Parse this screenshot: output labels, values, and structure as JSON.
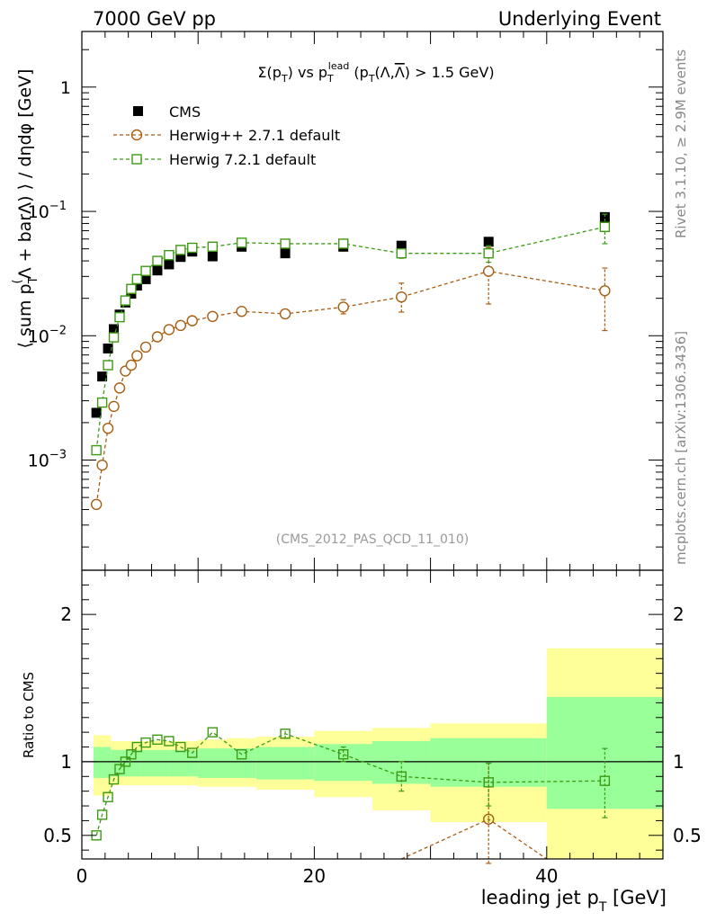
{
  "header": {
    "left": "7000 GeV pp",
    "right": "Underlying Event"
  },
  "side_labels": {
    "rivet": "Rivet 3.1.10, ≥ 2.9M events",
    "mcplots": "mcplots.cern.ch [arXiv:1306.3436]"
  },
  "chart_data": [
    {
      "type": "scatter",
      "panel": "main",
      "title_parts": [
        "Σ(p",
        "T",
        ") vs p",
        "T",
        "lead",
        " (p",
        "T",
        "(Λ,",
        "Λ",
        ") > 1.5 GeV)"
      ],
      "ylabel": "⟨ sum p",
      "ylabel_parts": [
        "⟨ sum p",
        "T",
        "(",
        "Λ + barΛ) ⟩ / dηdφ [GeV]"
      ],
      "xlabel": "",
      "xlim": [
        0,
        50
      ],
      "ylim": [
        0.00013,
        2.8
      ],
      "yscale": "log",
      "y_ticks": [
        {
          "value": 1,
          "label": "1"
        },
        {
          "value": 0.1,
          "label": "10",
          "exp": "−1"
        },
        {
          "value": 0.01,
          "label": "10",
          "exp": "−2"
        },
        {
          "value": 0.001,
          "label": "10",
          "exp": "−3"
        }
      ],
      "watermark": "(CMS_2012_PAS_QCD_11_010)",
      "legend_position": "top-left",
      "series": [
        {
          "name": "CMS",
          "color": "#000000",
          "marker": "filled-square",
          "x": [
            1.25,
            1.75,
            2.25,
            2.75,
            3.25,
            3.75,
            4.25,
            4.75,
            5.5,
            6.5,
            7.5,
            8.5,
            9.5,
            11.25,
            13.75,
            17.5,
            22.5,
            27.5,
            35,
            45
          ],
          "y": [
            0.0024,
            0.0047,
            0.0079,
            0.0113,
            0.0148,
            0.0185,
            0.0218,
            0.0253,
            0.0285,
            0.0335,
            0.0375,
            0.043,
            0.0475,
            0.0435,
            0.052,
            0.046,
            0.052,
            0.053,
            0.057,
            0.09
          ]
        },
        {
          "name": "Herwig++ 2.7.1 default",
          "color": "#a85d12",
          "marker": "open-circle",
          "x": [
            1.25,
            1.75,
            2.25,
            2.75,
            3.25,
            3.75,
            4.25,
            4.75,
            5.5,
            6.5,
            7.5,
            8.5,
            9.5,
            11.25,
            13.75,
            17.5,
            22.5,
            27.5,
            35,
            45
          ],
          "y": [
            0.00044,
            0.00091,
            0.0018,
            0.0027,
            0.0038,
            0.0052,
            0.0058,
            0.0069,
            0.0081,
            0.0098,
            0.0112,
            0.0121,
            0.0132,
            0.0143,
            0.0157,
            0.015,
            0.017,
            0.0205,
            0.033,
            0.023
          ],
          "err_low": [
            0,
            0,
            0,
            0,
            0,
            0,
            0,
            0,
            0,
            0,
            0,
            0,
            0,
            0,
            0,
            0,
            0.002,
            0.005,
            0.015,
            0.012
          ],
          "err_high": [
            0,
            0,
            0,
            0,
            0,
            0,
            0,
            0,
            0,
            0,
            0,
            0,
            0,
            0,
            0,
            0,
            0.0025,
            0.006,
            0.018,
            0.012
          ]
        },
        {
          "name": "Herwig 7.2.1 default",
          "color": "#3d9a14",
          "marker": "open-square",
          "x": [
            1.25,
            1.75,
            2.25,
            2.75,
            3.25,
            3.75,
            4.25,
            4.75,
            5.5,
            6.5,
            7.5,
            8.5,
            9.5,
            11.25,
            13.75,
            17.5,
            22.5,
            27.5,
            35,
            45
          ],
          "y": [
            0.0012,
            0.0029,
            0.0058,
            0.0097,
            0.0141,
            0.0192,
            0.0238,
            0.0285,
            0.0332,
            0.04,
            0.0445,
            0.049,
            0.051,
            0.052,
            0.056,
            0.055,
            0.055,
            0.046,
            0.046,
            0.075
          ],
          "err_low": [
            0,
            0,
            0,
            0,
            0,
            0,
            0,
            0,
            0,
            0,
            0,
            0,
            0,
            0,
            0,
            0,
            0,
            0.004,
            0.007,
            0.02
          ],
          "err_high": [
            0,
            0,
            0,
            0,
            0,
            0,
            0,
            0,
            0,
            0,
            0,
            0,
            0,
            0,
            0,
            0,
            0,
            0.004,
            0.007,
            0.02
          ]
        }
      ]
    },
    {
      "type": "scatter",
      "panel": "ratio",
      "ylabel": "Ratio to CMS",
      "xlabel": "leading jet p",
      "xlabel_parts": [
        "leading jet p",
        "T",
        " [GeV]"
      ],
      "xlim": [
        0,
        50
      ],
      "ylim": [
        0.34,
        2.3
      ],
      "x_ticks": [
        0,
        20,
        40
      ],
      "y_ticks": [
        0.5,
        1,
        2
      ],
      "bands": [
        {
          "x0": 1,
          "x1": 2.5,
          "yellow": [
            0.77,
            1.18
          ],
          "green": [
            0.89,
            1.1
          ]
        },
        {
          "x0": 2.5,
          "x1": 5,
          "yellow": [
            0.84,
            1.14
          ],
          "green": [
            0.9,
            1.08
          ]
        },
        {
          "x0": 5,
          "x1": 7.5,
          "yellow": [
            0.84,
            1.14
          ],
          "green": [
            0.9,
            1.08
          ]
        },
        {
          "x0": 7.5,
          "x1": 10,
          "yellow": [
            0.84,
            1.14
          ],
          "green": [
            0.9,
            1.08
          ]
        },
        {
          "x0": 10,
          "x1": 12.5,
          "yellow": [
            0.83,
            1.15
          ],
          "green": [
            0.89,
            1.09
          ]
        },
        {
          "x0": 12.5,
          "x1": 15,
          "yellow": [
            0.83,
            1.16
          ],
          "green": [
            0.89,
            1.09
          ]
        },
        {
          "x0": 15,
          "x1": 20,
          "yellow": [
            0.81,
            1.17
          ],
          "green": [
            0.88,
            1.1
          ]
        },
        {
          "x0": 20,
          "x1": 25,
          "yellow": [
            0.76,
            1.21
          ],
          "green": [
            0.87,
            1.12
          ]
        },
        {
          "x0": 25,
          "x1": 30,
          "yellow": [
            0.67,
            1.23
          ],
          "green": [
            0.85,
            1.14
          ]
        },
        {
          "x0": 30,
          "x1": 40,
          "yellow": [
            0.59,
            1.26
          ],
          "green": [
            0.83,
            1.16
          ]
        },
        {
          "x0": 40,
          "x1": 50,
          "yellow": [
            0.34,
            1.77
          ],
          "green": [
            0.68,
            1.44
          ]
        }
      ],
      "series": [
        {
          "name": "Herwig++ 2.7.1 default",
          "color": "#a85d12",
          "x": [
            27.5,
            35,
            40
          ],
          "y": [
            0.34,
            0.61,
            0.34
          ],
          "point_indices": [
            1
          ],
          "err_low": [
            0,
            0.3,
            0
          ],
          "err_high": [
            0,
            0.38,
            0
          ]
        },
        {
          "name": "Herwig 7.2.1 default",
          "color": "#3d9a14",
          "x": [
            1.25,
            1.75,
            2.25,
            2.75,
            3.25,
            3.75,
            4.25,
            4.75,
            5.5,
            6.5,
            7.5,
            8.5,
            9.5,
            11.25,
            13.75,
            17.5,
            22.5,
            27.5,
            35,
            45
          ],
          "y": [
            0.5,
            0.64,
            0.76,
            0.88,
            0.95,
            1.0,
            1.05,
            1.1,
            1.13,
            1.15,
            1.14,
            1.1,
            1.06,
            1.2,
            1.05,
            1.19,
            1.05,
            0.9,
            0.86,
            0.87
          ],
          "err_low": [
            0,
            0,
            0,
            0,
            0,
            0,
            0,
            0,
            0,
            0,
            0,
            0,
            0,
            0,
            0,
            0.03,
            0.05,
            0.1,
            0.16,
            0.25
          ],
          "err_high": [
            0,
            0,
            0,
            0,
            0,
            0,
            0,
            0,
            0,
            0,
            0,
            0,
            0,
            0,
            0,
            0.03,
            0.05,
            0.1,
            0.13,
            0.22
          ]
        }
      ]
    }
  ]
}
